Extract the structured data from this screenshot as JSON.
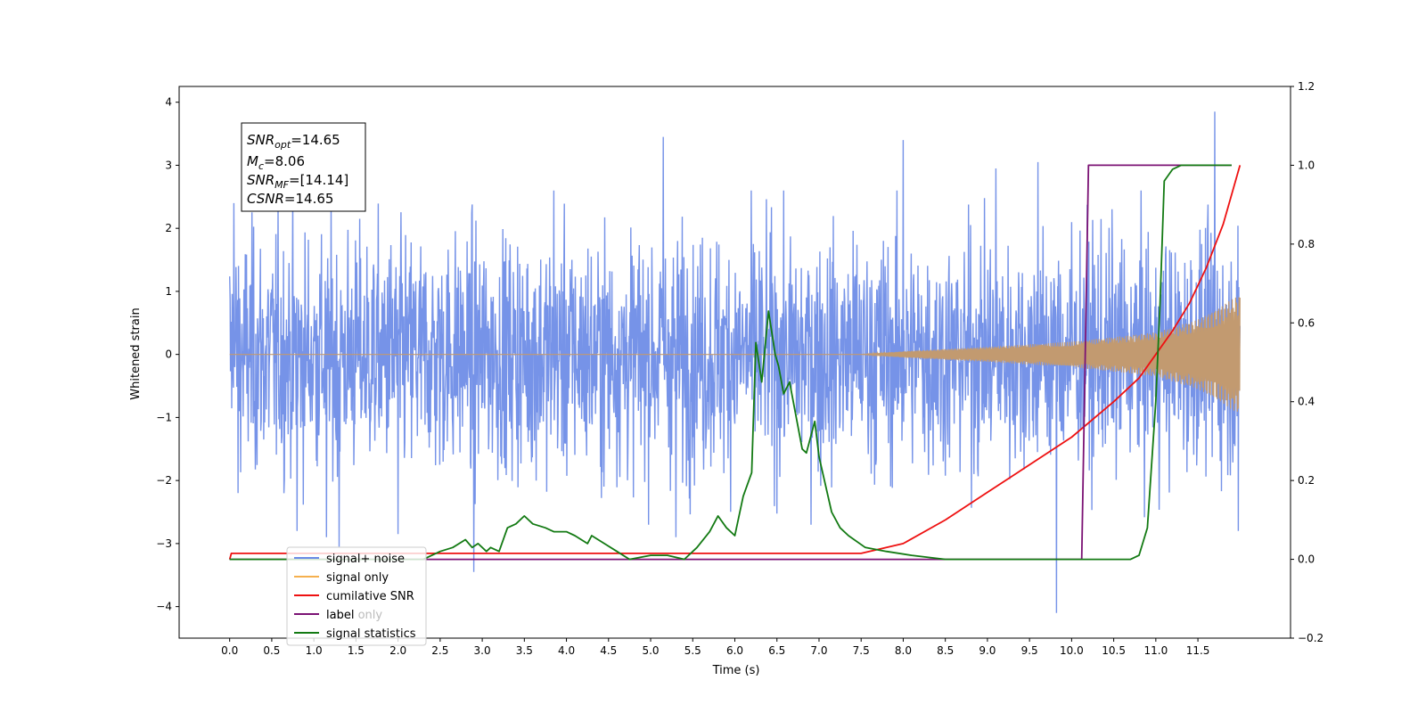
{
  "chart_data": {
    "type": "line",
    "xlabel": "Time (s)",
    "ylabel_left": "Whitened strain",
    "ylabel_right": "",
    "xlim": [
      -0.6,
      12.6
    ],
    "ylim_left": [
      -4.5,
      4.25
    ],
    "ylim_right": [
      -0.2,
      1.2
    ],
    "x_ticks": [
      "0.0",
      "0.5",
      "1.0",
      "1.5",
      "2.0",
      "2.5",
      "3.0",
      "3.5",
      "4.0",
      "4.5",
      "5.0",
      "5.5",
      "6.0",
      "6.5",
      "7.0",
      "7.5",
      "8.0",
      "8.5",
      "9.0",
      "9.5",
      "10.0",
      "10.5",
      "11.0",
      "11.5"
    ],
    "y_ticks_left": [
      "−4",
      "−3",
      "−2",
      "−1",
      "0",
      "1",
      "2",
      "3",
      "4"
    ],
    "y_ticks_right": [
      "−0.2",
      "0.0",
      "0.2",
      "0.4",
      "0.6",
      "0.8",
      "1.0",
      "1.2"
    ],
    "grid": false,
    "legend_position": "lower-left",
    "annotation": {
      "snr_opt_label": "SNR",
      "snr_opt_sub": "opt",
      "snr_opt_value": "=14.65",
      "mc_label": "M",
      "mc_sub": "c",
      "mc_value": "=8.06",
      "snr_mf_label": "SNR",
      "snr_mf_sub": "MF",
      "snr_mf_value": "=[14.14]",
      "csnr_label": "CSNR",
      "csnr_value": "=14.65"
    },
    "series": [
      {
        "name": "signal+ noise",
        "axis": "left",
        "color": "#6a8ae6",
        "kind": "noise",
        "x_range": [
          0.0,
          12.0
        ],
        "typical_range": [
          -1.5,
          1.5
        ],
        "extremes": [
          {
            "x": 0.05,
            "y": 2.4
          },
          {
            "x": 0.1,
            "y": -2.2
          },
          {
            "x": 0.8,
            "y": -2.8
          },
          {
            "x": 1.15,
            "y": -2.9
          },
          {
            "x": 1.3,
            "y": -3.05
          },
          {
            "x": 2.0,
            "y": -2.85
          },
          {
            "x": 2.9,
            "y": -3.45
          },
          {
            "x": 3.85,
            "y": 2.6
          },
          {
            "x": 5.15,
            "y": 3.45
          },
          {
            "x": 5.3,
            "y": -2.9
          },
          {
            "x": 8.0,
            "y": 3.4
          },
          {
            "x": 9.1,
            "y": 2.95
          },
          {
            "x": 9.6,
            "y": 3.05
          },
          {
            "x": 9.82,
            "y": -4.1
          },
          {
            "x": 11.7,
            "y": 3.85
          },
          {
            "x": 11.98,
            "y": -2.8
          }
        ]
      },
      {
        "name": "signal only",
        "axis": "left",
        "color": "#f5b04e",
        "kind": "chirp",
        "x_range": [
          0.0,
          12.0
        ],
        "envelope": [
          {
            "x": 0.0,
            "y": 0.0
          },
          {
            "x": 7.5,
            "y": 0.0
          },
          {
            "x": 8.0,
            "y": 0.05
          },
          {
            "x": 9.0,
            "y": 0.12
          },
          {
            "x": 10.0,
            "y": 0.2
          },
          {
            "x": 11.0,
            "y": 0.35
          },
          {
            "x": 11.5,
            "y": 0.55
          },
          {
            "x": 12.0,
            "y": 0.95
          }
        ]
      },
      {
        "name": "cumilative SNR",
        "axis": "right",
        "color": "#ee1111",
        "x": [
          0.0,
          0.02,
          7.5,
          8.0,
          8.5,
          9.0,
          9.5,
          10.0,
          10.5,
          10.8,
          11.0,
          11.2,
          11.4,
          11.6,
          11.8,
          12.0
        ],
        "y": [
          0.0,
          0.015,
          0.015,
          0.04,
          0.1,
          0.17,
          0.24,
          0.31,
          0.4,
          0.46,
          0.52,
          0.58,
          0.65,
          0.74,
          0.85,
          1.0
        ]
      },
      {
        "name": "label",
        "axis": "right",
        "color": "#7b1274",
        "x": [
          0.0,
          10.12,
          10.2,
          11.9
        ],
        "y": [
          0.0,
          0.0,
          1.0,
          1.0
        ]
      },
      {
        "name": "label only",
        "axis": "left",
        "color": "#bbbbbb",
        "hidden_in_plot": true
      },
      {
        "name": "signal statistics",
        "axis": "right",
        "color": "#137a13",
        "x": [
          0.0,
          2.3,
          2.5,
          2.65,
          2.8,
          2.88,
          2.95,
          3.05,
          3.1,
          3.2,
          3.3,
          3.4,
          3.5,
          3.6,
          3.75,
          3.85,
          4.0,
          4.1,
          4.25,
          4.3,
          4.45,
          4.6,
          4.75,
          5.0,
          5.2,
          5.4,
          5.55,
          5.7,
          5.8,
          5.9,
          6.0,
          6.1,
          6.2,
          6.25,
          6.32,
          6.4,
          6.48,
          6.52,
          6.58,
          6.65,
          6.8,
          6.85,
          6.95,
          7.0,
          7.15,
          7.25,
          7.35,
          7.55,
          7.8,
          8.1,
          8.5,
          9.0,
          10.7,
          10.8,
          10.9,
          11.0,
          11.05,
          11.1,
          11.2,
          11.3,
          11.5,
          11.9
        ],
        "y": [
          0.0,
          0.0,
          0.02,
          0.03,
          0.05,
          0.03,
          0.04,
          0.02,
          0.03,
          0.02,
          0.08,
          0.09,
          0.11,
          0.09,
          0.08,
          0.07,
          0.07,
          0.06,
          0.04,
          0.06,
          0.04,
          0.02,
          0.0,
          0.01,
          0.01,
          0.0,
          0.03,
          0.07,
          0.11,
          0.08,
          0.06,
          0.16,
          0.22,
          0.55,
          0.45,
          0.63,
          0.52,
          0.49,
          0.42,
          0.45,
          0.28,
          0.27,
          0.35,
          0.26,
          0.12,
          0.08,
          0.06,
          0.03,
          0.02,
          0.01,
          0.0,
          0.0,
          0.0,
          0.01,
          0.08,
          0.4,
          0.65,
          0.96,
          0.99,
          1.0,
          1.0,
          1.0
        ]
      }
    ]
  }
}
